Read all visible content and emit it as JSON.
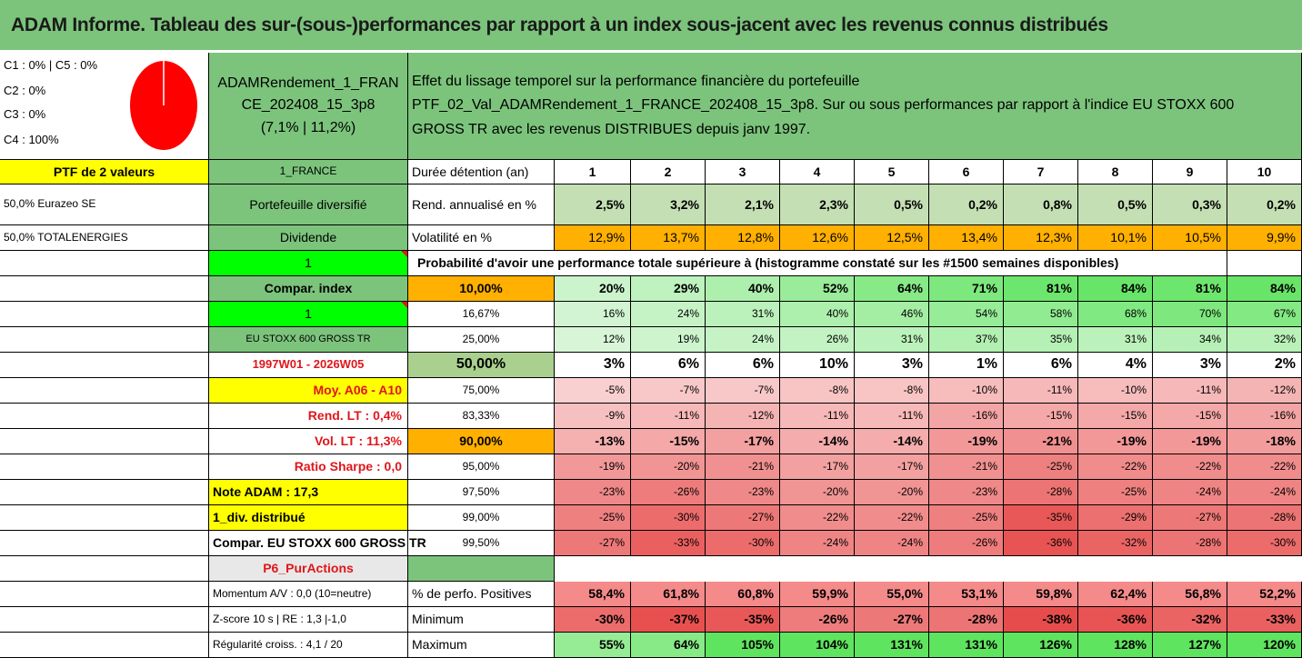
{
  "title": "ADAM Informe. Tableau des sur-(sous-)performances par rapport à un index sous-jacent avec les revenus connus distribués",
  "colors": {
    "green": "#7cc47c",
    "yellow": "#ffff00",
    "bright_green": "#00ff00",
    "orange": "#ffb000",
    "red_text": "#e0161b",
    "pie": "#ff0000"
  },
  "alloc": {
    "line1": "C1 : 0% | C5 : 0%",
    "line2": "C2 : 0%",
    "line3": "C3 : 0%",
    "line4": "C4 : 100%",
    "pie_values": {
      "C1": 0,
      "C2": 0,
      "C3": 0,
      "C4": 100,
      "C5": 0
    }
  },
  "fund": {
    "line1": "ADAMRendement_1_FRAN",
    "line2": "CE_202408_15_3p8",
    "line3": "(7,1% | 11,2%)"
  },
  "desc": {
    "line1": "Effet du lissage temporel sur la performance financière du portefeuille",
    "line2": "PTF_02_Val_ADAMRendement_1_FRANCE_202408_15_3p8. Sur ou sous performances par rapport à l'indice EU STOXX 600",
    "line3": "GROSS TR avec les revenus DISTRIBUES depuis janv 1997."
  },
  "col_a": {
    "ptf": "PTF de 2 valeurs",
    "holding1": "50,0% Eurazeo SE",
    "holding2": "50,0% TOTALENERGIES",
    "momentum": "Momentum A/V : 0,0 (10=neutre)",
    "zscore": "Z-score 10 s | RE : 1,3 |-1,0",
    "regularite": "Régularité croiss. : 4,1 / 20"
  },
  "col_b": {
    "france": "1_FRANCE",
    "diversifie": "Portefeuille diversifié",
    "dividende": "Dividende",
    "one_a": "1",
    "compar_index": "Compar. index",
    "one_b": "1",
    "index_name": "EU STOXX 600 GROSS TR",
    "period": "1997W01 - 2026W05",
    "moy": "Moy. A06 - A10",
    "rend": "Rend. LT : 0,4%",
    "vol": "Vol. LT : 11,3%",
    "sharpe": "Ratio Sharpe : 0,0",
    "note": "Note ADAM : 17,3",
    "div": "1_div. distribué",
    "compar_label": "Compar. EU STOXX 600 GROSS TR",
    "p6": "P6_PurActions"
  },
  "labels": {
    "duree": "Durée détention (an)",
    "rend": "Rend. annualisé en %",
    "vol": "Volatilité en %",
    "proba": "Probabilité d'avoir une performance totale supérieure à (histogramme constaté sur les #1500 semaines disponibles)",
    "pos": "% de perfo. Positives",
    "min": "Minimum",
    "max": "Maximum"
  },
  "years": [
    "1",
    "2",
    "3",
    "4",
    "5",
    "6",
    "7",
    "8",
    "9",
    "10"
  ],
  "rend": [
    "2,5%",
    "3,2%",
    "2,1%",
    "2,3%",
    "0,5%",
    "0,2%",
    "0,8%",
    "0,5%",
    "0,3%",
    "0,2%"
  ],
  "vol": [
    "12,9%",
    "13,7%",
    "12,8%",
    "12,6%",
    "12,5%",
    "13,4%",
    "12,3%",
    "10,1%",
    "10,5%",
    "9,9%"
  ],
  "proba": [
    {
      "p": "10,00%",
      "v": [
        "20%",
        "29%",
        "40%",
        "52%",
        "64%",
        "71%",
        "81%",
        "84%",
        "81%",
        "84%"
      ]
    },
    {
      "p": "16,67%",
      "v": [
        "16%",
        "24%",
        "31%",
        "40%",
        "46%",
        "54%",
        "58%",
        "68%",
        "70%",
        "67%"
      ]
    },
    {
      "p": "25,00%",
      "v": [
        "12%",
        "19%",
        "24%",
        "26%",
        "31%",
        "37%",
        "35%",
        "31%",
        "34%",
        "32%"
      ]
    },
    {
      "p": "50,00%",
      "v": [
        "3%",
        "6%",
        "6%",
        "10%",
        "3%",
        "1%",
        "6%",
        "4%",
        "3%",
        "2%"
      ]
    },
    {
      "p": "75,00%",
      "v": [
        "-5%",
        "-7%",
        "-7%",
        "-8%",
        "-8%",
        "-10%",
        "-11%",
        "-10%",
        "-11%",
        "-12%"
      ]
    },
    {
      "p": "83,33%",
      "v": [
        "-9%",
        "-11%",
        "-12%",
        "-11%",
        "-11%",
        "-16%",
        "-15%",
        "-15%",
        "-15%",
        "-16%"
      ]
    },
    {
      "p": "90,00%",
      "v": [
        "-13%",
        "-15%",
        "-17%",
        "-14%",
        "-14%",
        "-19%",
        "-21%",
        "-19%",
        "-19%",
        "-18%"
      ]
    },
    {
      "p": "95,00%",
      "v": [
        "-19%",
        "-20%",
        "-21%",
        "-17%",
        "-17%",
        "-21%",
        "-25%",
        "-22%",
        "-22%",
        "-22%"
      ]
    },
    {
      "p": "97,50%",
      "v": [
        "-23%",
        "-26%",
        "-23%",
        "-20%",
        "-20%",
        "-23%",
        "-28%",
        "-25%",
        "-24%",
        "-24%"
      ]
    },
    {
      "p": "99,00%",
      "v": [
        "-25%",
        "-30%",
        "-27%",
        "-22%",
        "-22%",
        "-25%",
        "-35%",
        "-29%",
        "-27%",
        "-28%"
      ]
    },
    {
      "p": "99,50%",
      "v": [
        "-27%",
        "-33%",
        "-30%",
        "-24%",
        "-24%",
        "-26%",
        "-36%",
        "-32%",
        "-28%",
        "-30%"
      ]
    }
  ],
  "pos": [
    "58,4%",
    "61,8%",
    "60,8%",
    "59,9%",
    "55,0%",
    "53,1%",
    "59,8%",
    "62,4%",
    "56,8%",
    "52,2%"
  ],
  "min": [
    "-30%",
    "-37%",
    "-35%",
    "-26%",
    "-27%",
    "-28%",
    "-38%",
    "-36%",
    "-32%",
    "-33%"
  ],
  "max": [
    "55%",
    "64%",
    "105%",
    "104%",
    "131%",
    "131%",
    "126%",
    "128%",
    "127%",
    "120%"
  ]
}
